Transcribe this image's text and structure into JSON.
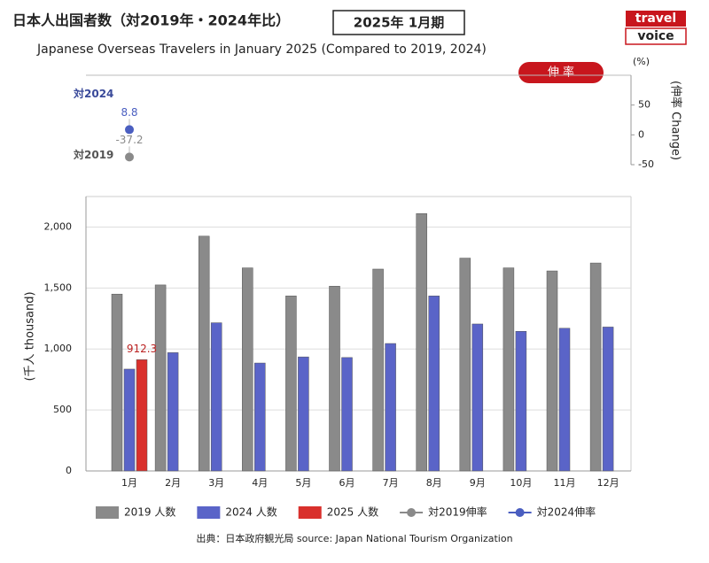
{
  "header": {
    "title": "日本人出国者数（対2019年・2024年比）",
    "period": "2025年 1月期",
    "subtitle": "Japanese Overseas Travelers in January 2025 (Compared to 2019, 2024)",
    "logo_top": "travel",
    "logo_bottom": "voice"
  },
  "chart_data": [
    {
      "type": "line",
      "button": "伸 率",
      "unit": "(%)",
      "y_label": "(伸率 Change)",
      "ylim": [
        -50,
        100
      ],
      "yticks": [
        -50,
        0,
        50
      ],
      "series": [
        {
          "name": "対2019伸率",
          "label": "対2019",
          "color": "#8a8a8a",
          "values": [
            -37.2,
            null,
            null,
            null,
            null,
            null,
            null,
            null,
            null,
            null,
            null,
            null
          ]
        },
        {
          "name": "対2024伸率",
          "label": "対2024",
          "color": "#4a5ec0",
          "values": [
            8.8,
            null,
            null,
            null,
            null,
            null,
            null,
            null,
            null,
            null,
            null,
            null
          ]
        }
      ]
    },
    {
      "type": "bar",
      "y_label": "(千人 thousand)",
      "categories": [
        "1月",
        "2月",
        "3月",
        "4月",
        "5月",
        "6月",
        "7月",
        "8月",
        "9月",
        "10月",
        "11月",
        "12月"
      ],
      "ylim": [
        0,
        2250
      ],
      "yticks": [
        0,
        500,
        {
          "value": 1000,
          "label": "1,000"
        },
        {
          "value": 1500,
          "label": "1,500"
        },
        {
          "value": 2000,
          "label": "2,000"
        }
      ],
      "grid": true,
      "series": [
        {
          "name": "2019 人数",
          "color": "#8a8a8a",
          "values": [
            1450,
            1525,
            1925,
            1665,
            1435,
            1515,
            1655,
            2110,
            1745,
            1665,
            1640,
            1705
          ]
        },
        {
          "name": "2024 人数",
          "color": "#5a64c8",
          "values": [
            835,
            970,
            1215,
            885,
            935,
            930,
            1045,
            1435,
            1205,
            1145,
            1170,
            1180
          ]
        },
        {
          "name": "2025 人数",
          "color": "#d9302c",
          "values": [
            912.3,
            null,
            null,
            null,
            null,
            null,
            null,
            null,
            null,
            null,
            null,
            null
          ]
        }
      ]
    }
  ],
  "footer": {
    "source": "出典：日本政府観光局  source: Japan National Tourism Organization"
  }
}
